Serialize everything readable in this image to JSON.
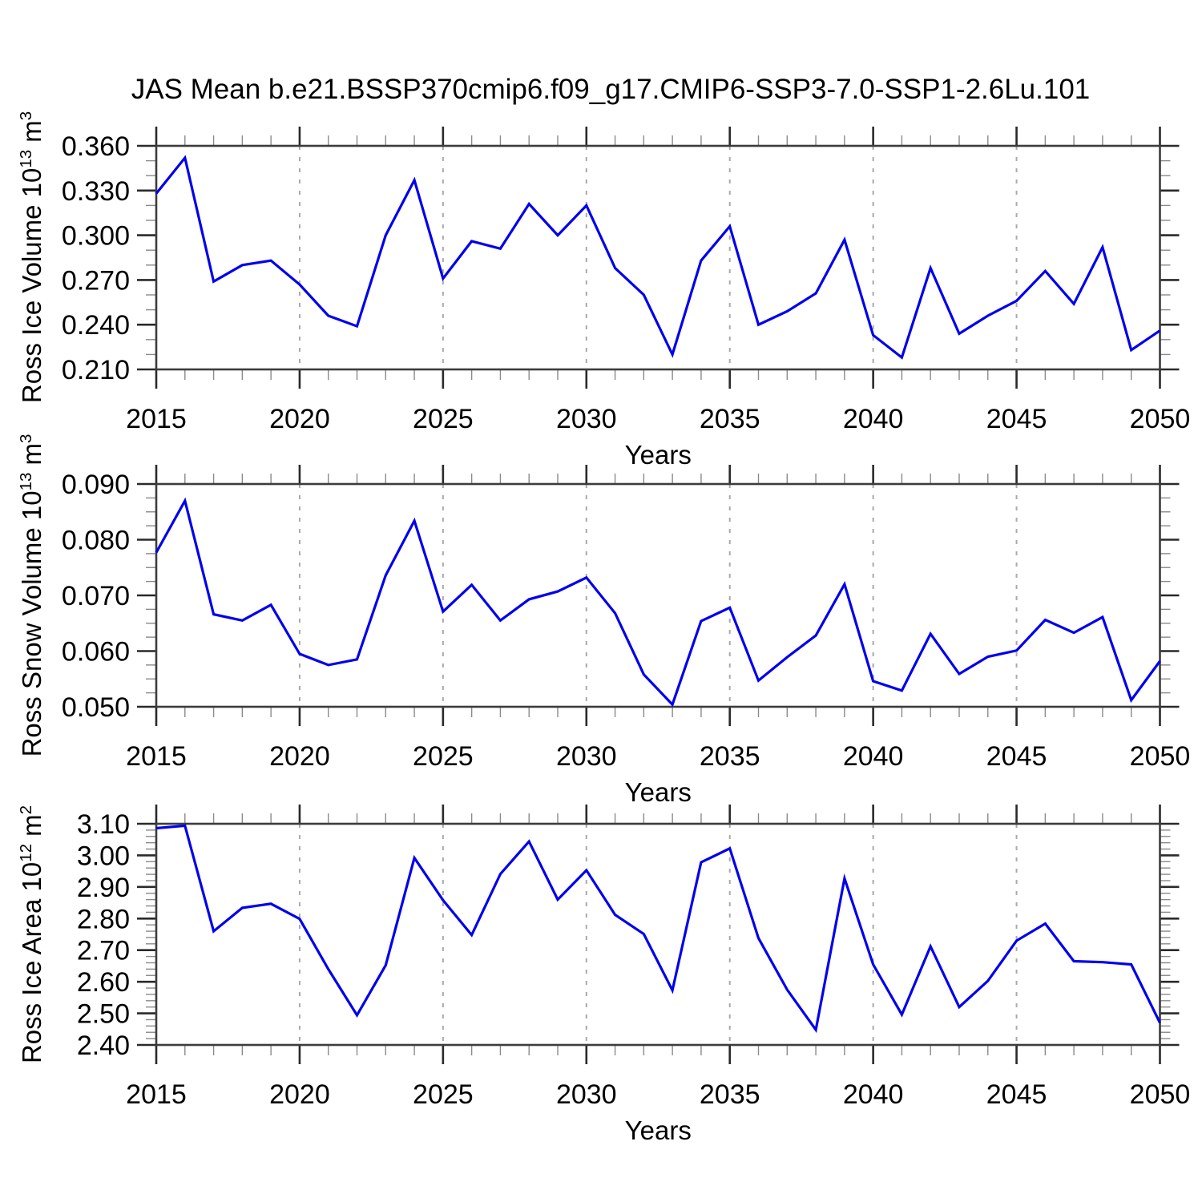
{
  "title": "JAS Mean b.e21.BSSP370cmip6.f09_g17.CMIP6-SSP3-7.0-SSP1-2.6Lu.101",
  "x_axis": {
    "label": "Years",
    "range": [
      2015,
      2050
    ],
    "tick_values": [
      2015,
      2020,
      2025,
      2030,
      2035,
      2040,
      2045,
      2050
    ],
    "tick_labels": [
      "2015",
      "2020",
      "2025",
      "2030",
      "2035",
      "2040",
      "2045",
      "2050"
    ],
    "minor_step_years": 1
  },
  "grid": {
    "vertical_dashed_at": [
      2020,
      2025,
      2030,
      2035,
      2040,
      2045
    ]
  },
  "years": [
    2015,
    2016,
    2017,
    2018,
    2019,
    2020,
    2021,
    2022,
    2023,
    2024,
    2025,
    2026,
    2027,
    2028,
    2029,
    2030,
    2031,
    2032,
    2033,
    2034,
    2035,
    2036,
    2037,
    2038,
    2039,
    2040,
    2041,
    2042,
    2043,
    2044,
    2045,
    2046,
    2047,
    2048,
    2049,
    2050
  ],
  "chart_data": [
    {
      "type": "line",
      "ylabel_plain": "Ross Ice Volume 10^13 m^3",
      "ylabel_parts": {
        "prefix": "Ross Ice Volume 10",
        "exp": "13",
        "unit": " m",
        "unit_exp": "3"
      },
      "ylim": [
        0.21,
        0.36
      ],
      "y_major_step": 0.03,
      "y_minors_per_major": 3,
      "y_tick_labels": [
        "0.210",
        "0.240",
        "0.270",
        "0.300",
        "0.330",
        "0.360"
      ],
      "values": [
        0.328,
        0.352,
        0.269,
        0.28,
        0.283,
        0.267,
        0.246,
        0.239,
        0.3,
        0.337,
        0.271,
        0.296,
        0.291,
        0.321,
        0.3,
        0.32,
        0.278,
        0.26,
        0.22,
        0.283,
        0.306,
        0.24,
        0.249,
        0.261,
        0.297,
        0.233,
        0.218,
        0.278,
        0.234,
        0.246,
        0.256,
        0.276,
        0.254,
        0.292,
        0.223,
        0.236
      ]
    },
    {
      "type": "line",
      "ylabel_plain": "Ross Snow Volume 10^13 m^3",
      "ylabel_parts": {
        "prefix": "Ross Snow Volume 10",
        "exp": "13",
        "unit": " m",
        "unit_exp": "3"
      },
      "ylim": [
        0.05,
        0.09
      ],
      "y_major_step": 0.01,
      "y_minors_per_major": 4,
      "y_tick_labels": [
        "0.050",
        "0.060",
        "0.070",
        "0.080",
        "0.090"
      ],
      "values": [
        0.0777,
        0.087,
        0.0666,
        0.0655,
        0.0683,
        0.0595,
        0.0575,
        0.0585,
        0.0736,
        0.0834,
        0.0671,
        0.0719,
        0.0655,
        0.0693,
        0.0707,
        0.0732,
        0.0668,
        0.0558,
        0.0504,
        0.0654,
        0.0678,
        0.0547,
        0.0589,
        0.0628,
        0.072,
        0.0546,
        0.0529,
        0.0631,
        0.0559,
        0.059,
        0.0601,
        0.0656,
        0.0633,
        0.0661,
        0.0512,
        0.0582
      ]
    },
    {
      "type": "line",
      "ylabel_plain": "Ross Ice Area 10^12 m^2",
      "ylabel_parts": {
        "prefix": "Ross Ice Area 10",
        "exp": "12",
        "unit": " m",
        "unit_exp": "2"
      },
      "ylim": [
        2.4,
        3.1
      ],
      "y_major_step": 0.1,
      "y_minors_per_major": 5,
      "y_tick_labels": [
        "2.40",
        "2.50",
        "2.60",
        "2.70",
        "2.80",
        "2.90",
        "3.00",
        "3.10"
      ],
      "values": [
        3.086,
        3.094,
        2.76,
        2.834,
        2.847,
        2.799,
        2.64,
        2.494,
        2.652,
        2.992,
        2.858,
        2.748,
        2.941,
        3.044,
        2.86,
        2.953,
        2.812,
        2.751,
        2.573,
        2.978,
        3.022,
        2.738,
        2.575,
        2.448,
        2.927,
        2.655,
        2.496,
        2.712,
        2.52,
        2.603,
        2.73,
        2.784,
        2.665,
        2.662,
        2.655,
        2.47
      ]
    }
  ],
  "style": {
    "line_color": "#0000ee",
    "frame_color": "#3c3c3c",
    "grid_color": "#aaaaaa",
    "major_tick_color": "#2a2a2a",
    "minor_tick_color": "#8a8a8a",
    "text_color": "#000000",
    "background": "#ffffff"
  }
}
